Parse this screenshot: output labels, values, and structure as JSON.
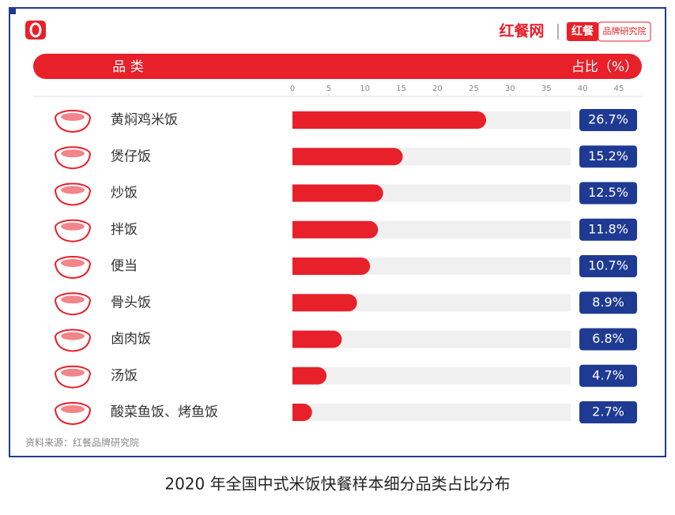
{
  "chart_data": {
    "type": "bar",
    "orientation": "horizontal",
    "title": "2020 年全国中式米饭快餐样本细分品类占比分布",
    "brand": "红餐网",
    "brand_badge_main": "红餐",
    "brand_badge_sub": "品牌研究院",
    "category_header": "品 类",
    "value_header": "占比（%）",
    "source": "资料来源：红餐品牌研究院",
    "categories": [
      "黄焖鸡米饭",
      "煲仔饭",
      "炒饭",
      "拌饭",
      "便当",
      "骨头饭",
      "卤肉饭",
      "汤饭",
      "酸菜鱼饭、烤鱼饭"
    ],
    "values": [
      26.7,
      15.2,
      12.5,
      11.8,
      10.7,
      8.9,
      6.8,
      4.7,
      2.7
    ],
    "value_labels": [
      "26.7%",
      "15.2%",
      "12.5%",
      "11.8%",
      "10.7%",
      "8.9%",
      "6.8%",
      "4.7%",
      "2.7%"
    ],
    "color": "#e8202a",
    "label_color": "#1f3a93",
    "xlim": [
      0,
      45
    ],
    "xticks": [
      0,
      5,
      10,
      15,
      20,
      25,
      30,
      35,
      40,
      45
    ]
  }
}
